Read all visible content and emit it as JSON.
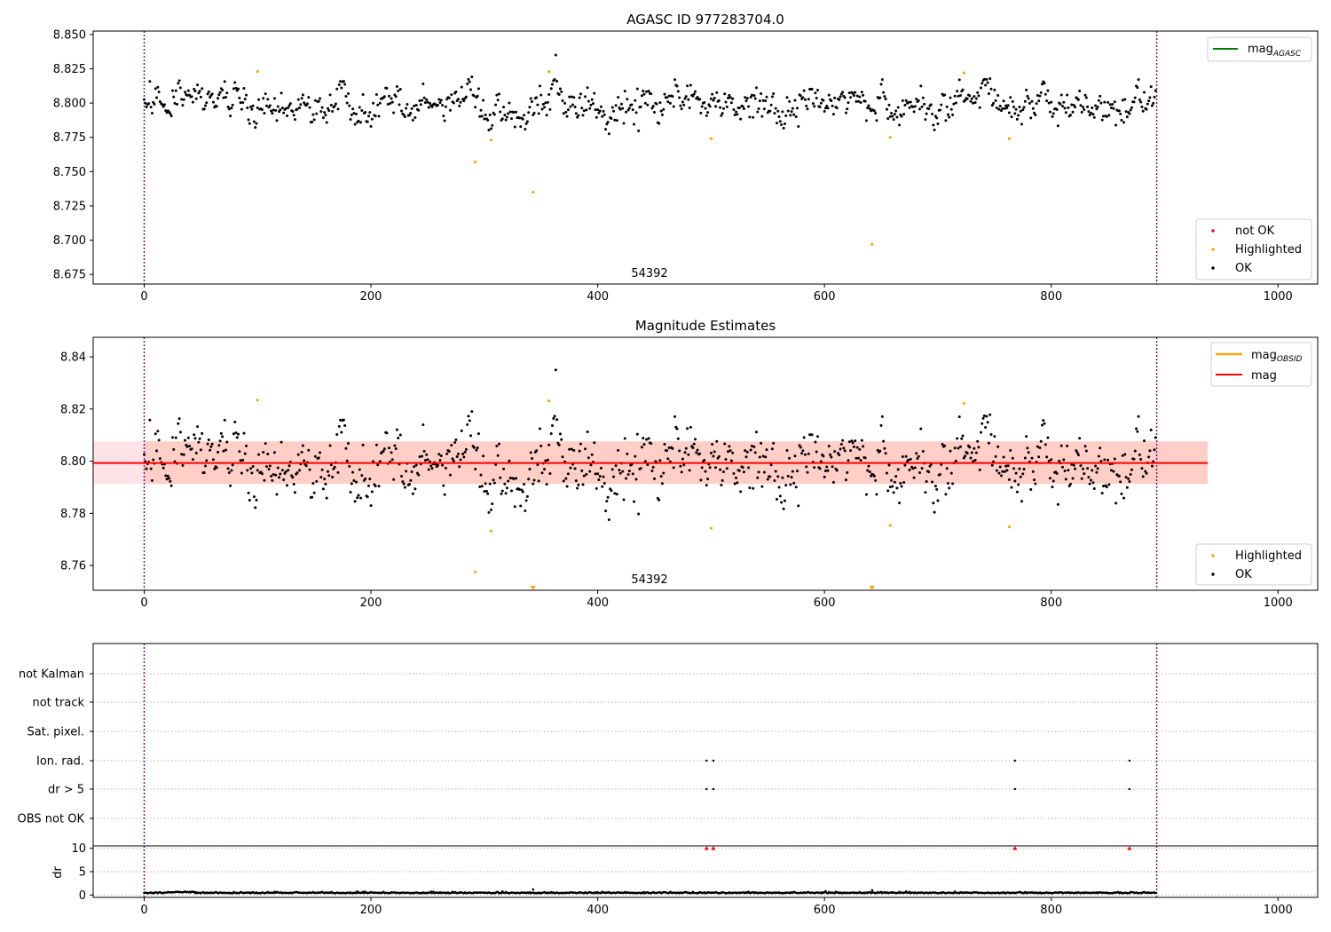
{
  "figure": {
    "background": "#ffffff",
    "colors": {
      "ok": "#000000",
      "highlighted": "#ffa500",
      "not_ok": "#ff0000",
      "agasc_line": "#008000",
      "obsid_line": "#ffa500",
      "mag_line": "#ff0000",
      "mag_band": "#ffc0cb",
      "mag_band_inner": "#ffdab9",
      "vline": "#800080"
    }
  },
  "chart_data": [
    {
      "type": "scatter",
      "title": "AGASC ID 977283704.0",
      "xlim": [
        -45,
        1035
      ],
      "ylim": [
        8.668,
        8.8525
      ],
      "xticks": [
        0,
        200,
        400,
        600,
        800,
        1000
      ],
      "yticks": [
        "8.850",
        "8.825",
        "8.800",
        "8.775",
        "8.750",
        "8.725",
        "8.700",
        "8.675"
      ],
      "ytick_values": [
        8.85,
        8.825,
        8.8,
        8.775,
        8.75,
        8.725,
        8.7,
        8.675
      ],
      "obsid_label": "54392",
      "obsid_boundaries": [
        0,
        893
      ],
      "legend_lines": [
        {
          "label": "mag",
          "sub": "AGASC"
        }
      ],
      "legend_points": [
        {
          "label": "not OK",
          "color": "#ff0000"
        },
        {
          "label": "Highlighted",
          "color": "#ffa500"
        },
        {
          "label": "OK",
          "color": "#000000"
        }
      ],
      "series": [
        {
          "name": "OK",
          "color": "#000000",
          "n": 893,
          "mean": 8.8,
          "spread": 0.008
        },
        {
          "name": "Highlighted",
          "color": "#ffa500",
          "points": [
            [
              100,
              8.823
            ],
            [
              292,
              8.757
            ],
            [
              306,
              8.773
            ],
            [
              343,
              8.735
            ],
            [
              357,
              8.823
            ],
            [
              500,
              8.774
            ],
            [
              642,
              8.697
            ],
            [
              658,
              8.775
            ],
            [
              723,
              8.822
            ],
            [
              763,
              8.774
            ]
          ]
        }
      ]
    },
    {
      "type": "scatter",
      "title": "Magnitude Estimates",
      "xlim": [
        -45,
        1035
      ],
      "ylim": [
        8.7505,
        8.8475
      ],
      "xticks": [
        0,
        200,
        400,
        600,
        800,
        1000
      ],
      "yticks": [
        "8.84",
        "8.82",
        "8.80",
        "8.78",
        "8.76"
      ],
      "ytick_values": [
        8.84,
        8.82,
        8.8,
        8.78,
        8.76
      ],
      "obsid_label": "54392",
      "obsid_boundaries": [
        0,
        893
      ],
      "mag": 8.7993,
      "mag_band": [
        8.7913,
        8.8076
      ],
      "mag_band_xrange": [
        -45,
        938
      ],
      "mag_obsid_band_xrange": [
        0,
        938
      ],
      "legend_lines": [
        {
          "label": "mag",
          "sub": "OBSID",
          "color": "#ffa500"
        },
        {
          "label": "mag",
          "sub": "",
          "color": "#ff0000"
        }
      ],
      "legend_points": [
        {
          "label": "Highlighted",
          "color": "#ffa500"
        },
        {
          "label": "OK",
          "color": "#000000"
        }
      ],
      "series": [
        {
          "name": "OK",
          "color": "#000000",
          "n": 893,
          "mean": 8.8,
          "spread": 0.008
        },
        {
          "name": "Highlighted",
          "color": "#ffa500",
          "points": [
            [
              100,
              8.8234
            ],
            [
              292,
              8.7575
            ],
            [
              306,
              8.7732
            ],
            [
              357,
              8.8231
            ],
            [
              500,
              8.7743
            ],
            [
              658,
              8.7754
            ],
            [
              723,
              8.8222
            ],
            [
              763,
              8.7748
            ]
          ]
        },
        {
          "name": "Highlighted (below range)",
          "color": "#ffa500",
          "marker": "triangle-down",
          "points": [
            [
              343,
              8.7505
            ],
            [
              642,
              8.7505
            ]
          ]
        }
      ]
    },
    {
      "type": "scatter",
      "title": "",
      "xlim": [
        -45,
        1035
      ],
      "xticks": [
        0,
        200,
        400,
        600,
        800,
        1000
      ],
      "flag_rows": [
        "not Kalman",
        "not track",
        "Sat. pixel.",
        "Ion. rad.",
        "dr > 5",
        "OBS not OK"
      ],
      "flag_points": {
        "Ion. rad.": [
          496,
          502,
          768,
          869
        ],
        "dr > 5": [
          496,
          502,
          768,
          869
        ]
      },
      "obsid_boundaries": [
        0,
        893
      ],
      "dr_ylabel": "dr",
      "dr_yticks": [
        "10",
        "5",
        "0"
      ],
      "dr_ytick_values": [
        10,
        5,
        0
      ],
      "dr_ylim": [
        -0.5,
        10.5
      ],
      "dr_clipped_x": [
        496,
        502,
        768,
        869
      ],
      "dr_clipped_value": 10,
      "dr_outliers": [
        [
          343,
          1.2
        ],
        [
          642,
          1.0
        ]
      ],
      "dr_n": 893,
      "dr_mean": 0.4
    }
  ]
}
